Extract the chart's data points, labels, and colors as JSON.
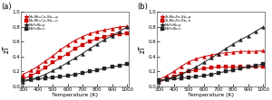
{
  "panel_a": {
    "label": "(a)",
    "legend": [
      "Nb₄Mn₄Co₄Sb₁₂-p",
      "Nb₄Mn₄Co₄Sb₁₂-n",
      "NbFeSb-p",
      "NbFeSb-n"
    ],
    "colors": [
      "#cc0000",
      "#cc0000",
      "#222222",
      "#222222"
    ],
    "markers": [
      "^",
      "s",
      "^",
      "s"
    ],
    "T": [
      300,
      350,
      400,
      450,
      500,
      550,
      600,
      650,
      700,
      750,
      800,
      850,
      900,
      950,
      1000
    ],
    "zT": [
      [
        0.16,
        0.21,
        0.27,
        0.34,
        0.41,
        0.49,
        0.56,
        0.62,
        0.67,
        0.71,
        0.74,
        0.76,
        0.78,
        0.8,
        0.81
      ],
      [
        0.1,
        0.14,
        0.19,
        0.25,
        0.32,
        0.38,
        0.44,
        0.51,
        0.56,
        0.61,
        0.64,
        0.67,
        0.69,
        0.7,
        0.72
      ],
      [
        0.06,
        0.09,
        0.12,
        0.16,
        0.21,
        0.26,
        0.32,
        0.38,
        0.44,
        0.51,
        0.57,
        0.63,
        0.68,
        0.74,
        0.8
      ],
      [
        0.08,
        0.09,
        0.1,
        0.11,
        0.12,
        0.13,
        0.14,
        0.16,
        0.18,
        0.2,
        0.22,
        0.24,
        0.26,
        0.28,
        0.3
      ]
    ]
  },
  "panel_b": {
    "label": "(b)",
    "legend": [
      "Zr₂Mo₂Fe₄Sb₈-p",
      "Zr₂Mo₂Fe₄Sb₈-n",
      "NbFeSb-p",
      "NbFeSb-n"
    ],
    "colors": [
      "#cc0000",
      "#cc0000",
      "#222222",
      "#222222"
    ],
    "markers": [
      "^",
      "s",
      "^",
      "s"
    ],
    "T": [
      300,
      350,
      400,
      450,
      500,
      550,
      600,
      650,
      700,
      750,
      800,
      850,
      900,
      950,
      1000
    ],
    "zT": [
      [
        0.09,
        0.14,
        0.2,
        0.27,
        0.33,
        0.37,
        0.4,
        0.42,
        0.44,
        0.45,
        0.46,
        0.47,
        0.47,
        0.47,
        0.48
      ],
      [
        0.07,
        0.1,
        0.13,
        0.17,
        0.2,
        0.22,
        0.24,
        0.25,
        0.26,
        0.26,
        0.26,
        0.26,
        0.26,
        0.26,
        0.27
      ],
      [
        0.06,
        0.09,
        0.12,
        0.16,
        0.21,
        0.26,
        0.32,
        0.38,
        0.44,
        0.51,
        0.57,
        0.63,
        0.68,
        0.74,
        0.8
      ],
      [
        0.08,
        0.09,
        0.1,
        0.11,
        0.12,
        0.13,
        0.14,
        0.16,
        0.18,
        0.2,
        0.22,
        0.24,
        0.26,
        0.28,
        0.3
      ]
    ]
  },
  "ylim": [
    0,
    1.0
  ],
  "xlim": [
    285,
    1010
  ],
  "xlabel": "Temperature (K)",
  "ylabel": "zT",
  "xticks": [
    300,
    400,
    500,
    600,
    700,
    800,
    900,
    1000
  ],
  "yticks": [
    0,
    0.2,
    0.4,
    0.6,
    0.8,
    1.0
  ],
  "bg": "#ffffff"
}
